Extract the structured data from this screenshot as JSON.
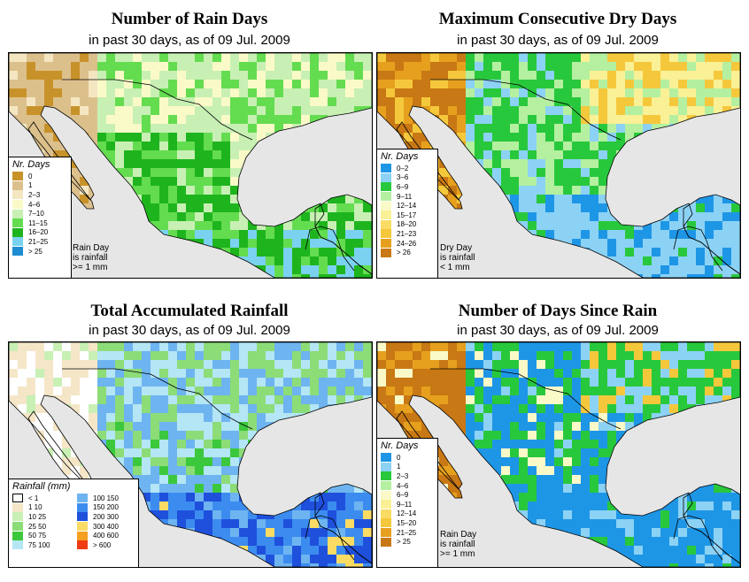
{
  "colors": {
    "ocean": "#e6e6e6",
    "border": "#000000"
  },
  "panels": [
    {
      "title": "Number of Rain Days",
      "subtitle": "in past 30 days, as of  09 Jul. 2009",
      "legend_title": "Nr. Days",
      "legend": [
        {
          "label": "0",
          "color": "#c8922a"
        },
        {
          "label": "1",
          "color": "#dcc08c"
        },
        {
          "label": "2–3",
          "color": "#f5e6c2"
        },
        {
          "label": "4–6",
          "color": "#fafac8"
        },
        {
          "label": "7–10",
          "color": "#c8f0b4"
        },
        {
          "label": "11–15",
          "color": "#64dc50"
        },
        {
          "label": "16–20",
          "color": "#1eb41e"
        },
        {
          "label": "21–25",
          "color": "#7ad2f0"
        },
        {
          "label": "> 25",
          "color": "#1e8cd2"
        }
      ],
      "note": [
        "Rain Day",
        "is rainfall",
        ">= 1 mm"
      ]
    },
    {
      "title": "Maximum Consecutive Dry Days",
      "subtitle": "in past 30 days, as of  09 Jul. 2009",
      "legend_title": "Nr. Days",
      "legend": [
        {
          "label": "0–2",
          "color": "#1e96e6"
        },
        {
          "label": "3–6",
          "color": "#8cd2f5"
        },
        {
          "label": "6–9",
          "color": "#28c83c"
        },
        {
          "label": "9–11",
          "color": "#b4f0a0"
        },
        {
          "label": "12–14",
          "color": "#fafac8"
        },
        {
          "label": "15–17",
          "color": "#faf096"
        },
        {
          "label": "18–20",
          "color": "#fadc64"
        },
        {
          "label": "21–23",
          "color": "#f5c83c"
        },
        {
          "label": "24–26",
          "color": "#e6a01e"
        },
        {
          "label": "> 26",
          "color": "#c87814"
        }
      ],
      "note": [
        "Dry Day",
        "is rainfall",
        "< 1 mm"
      ]
    },
    {
      "title": "Total Accumulated Rainfall",
      "subtitle": "in past 30 days, as of  09 Jul. 2009",
      "legend_title": "Rainfall (mm)",
      "legend": [
        {
          "label": "< 1",
          "color": "#ffffff"
        },
        {
          "label": "1   10",
          "color": "#f5e6c8"
        },
        {
          "label": "10   25",
          "color": "#c8f0b4"
        },
        {
          "label": "25   50",
          "color": "#8cdc78"
        },
        {
          "label": "50   75",
          "color": "#3cc83c"
        },
        {
          "label": "75   100",
          "color": "#b4e6f5"
        },
        {
          "label": "100   150",
          "color": "#6eb4f0"
        },
        {
          "label": "150   200",
          "color": "#3c8cf0"
        },
        {
          "label": "200   300",
          "color": "#1e50dc"
        },
        {
          "label": "300   400",
          "color": "#fadc64"
        },
        {
          "label": "400   600",
          "color": "#f5a01e"
        },
        {
          "label": "> 600",
          "color": "#f03c14"
        }
      ]
    },
    {
      "title": "Number of Days Since Rain",
      "subtitle": "in past 30 days, as of  09 Jul. 2009",
      "legend_title": "Nr. Days",
      "legend": [
        {
          "label": "0",
          "color": "#1e96e6"
        },
        {
          "label": "1",
          "color": "#8cd2f5"
        },
        {
          "label": "2–3",
          "color": "#28c83c"
        },
        {
          "label": "4–6",
          "color": "#b4f0a0"
        },
        {
          "label": "6–9",
          "color": "#fafac8"
        },
        {
          "label": "9–11",
          "color": "#faf096"
        },
        {
          "label": "12–14",
          "color": "#fadc64"
        },
        {
          "label": "15–20",
          "color": "#f5c83c"
        },
        {
          "label": "21–25",
          "color": "#e6a01e"
        },
        {
          "label": "> 25",
          "color": "#c87814"
        }
      ],
      "note": [
        "Rain Day",
        "is rainfall",
        ">= 1 mm"
      ]
    }
  ]
}
